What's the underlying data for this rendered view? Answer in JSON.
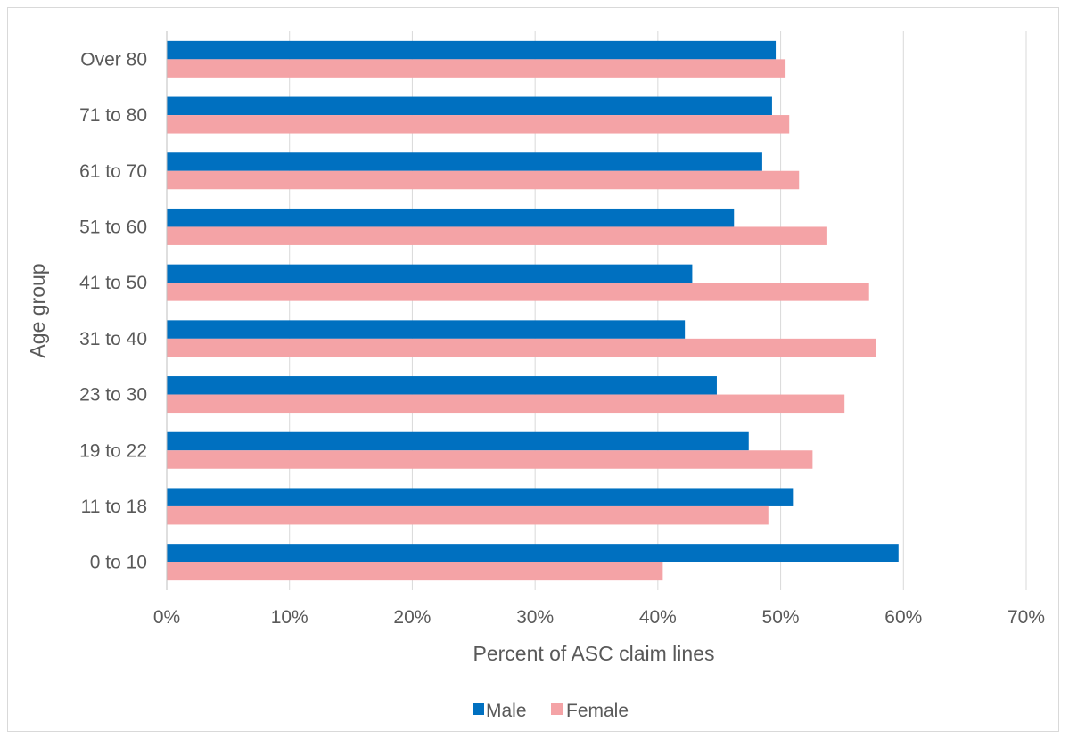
{
  "chart_data": {
    "type": "bar",
    "orientation": "horizontal",
    "categories": [
      "0 to 10",
      "11 to 18",
      "19 to 22",
      "23 to 30",
      "31 to 40",
      "41 to 50",
      "51 to 60",
      "61 to 70",
      "71 to 80",
      "Over 80"
    ],
    "series": [
      {
        "name": "Male",
        "color": "#0070C0",
        "values": [
          59.6,
          51.0,
          47.4,
          44.8,
          42.2,
          42.8,
          46.2,
          48.5,
          49.3,
          49.6
        ]
      },
      {
        "name": "Female",
        "color": "#F4A3A6",
        "values": [
          40.4,
          49.0,
          52.6,
          55.2,
          57.8,
          57.2,
          53.8,
          51.5,
          50.7,
          50.4
        ]
      }
    ],
    "x_ticks": [
      "0%",
      "10%",
      "20%",
      "30%",
      "40%",
      "50%",
      "60%",
      "70%"
    ],
    "xlim": [
      0,
      70
    ],
    "xlabel": "Percent of ASC claim lines",
    "ylabel": "Age group",
    "grid": "vertical",
    "legend": "bottom"
  }
}
